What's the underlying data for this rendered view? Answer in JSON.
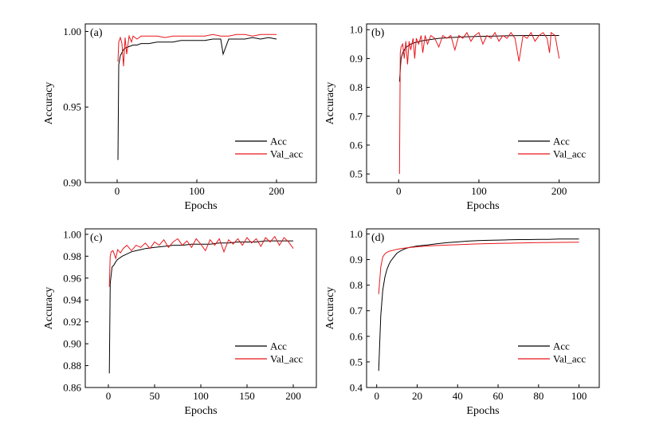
{
  "chart_data": [
    {
      "type": "line",
      "panel_label": "(a)",
      "xlabel": "Epochs",
      "ylabel": "Accuracy",
      "xlim": [
        -40,
        250
      ],
      "ylim": [
        0.9,
        1.005
      ],
      "xticks": [
        0,
        100,
        200
      ],
      "xtick_labels": [
        "0",
        "100",
        "200"
      ],
      "yticks": [
        0.9,
        0.95,
        1.0
      ],
      "ytick_labels": [
        "0.90",
        "0.95",
        "1.00"
      ],
      "legend_position": "bottom-right",
      "series": [
        {
          "name": "Acc",
          "color": "#000000",
          "x": [
            1,
            2,
            4,
            6,
            8,
            10,
            15,
            20,
            25,
            30,
            40,
            50,
            60,
            70,
            80,
            90,
            100,
            110,
            120,
            130,
            133,
            140,
            150,
            160,
            170,
            180,
            190,
            200
          ],
          "y": [
            0.915,
            0.978,
            0.984,
            0.986,
            0.988,
            0.989,
            0.99,
            0.991,
            0.991,
            0.992,
            0.992,
            0.993,
            0.993,
            0.993,
            0.994,
            0.994,
            0.994,
            0.994,
            0.995,
            0.995,
            0.985,
            0.995,
            0.995,
            0.995,
            0.996,
            0.995,
            0.996,
            0.995
          ]
        },
        {
          "name": "Val_acc",
          "color": "#e8161b",
          "x": [
            1,
            2,
            4,
            6,
            8,
            10,
            12,
            15,
            18,
            20,
            25,
            30,
            40,
            50,
            60,
            70,
            80,
            90,
            100,
            110,
            120,
            130,
            140,
            150,
            160,
            170,
            180,
            190,
            200
          ],
          "y": [
            0.98,
            0.993,
            0.996,
            0.992,
            0.977,
            0.996,
            0.985,
            0.997,
            0.993,
            0.997,
            0.995,
            0.997,
            0.997,
            0.997,
            0.996,
            0.997,
            0.997,
            0.997,
            0.997,
            0.997,
            0.998,
            0.997,
            0.997,
            0.998,
            0.998,
            0.997,
            0.998,
            0.998,
            0.998
          ]
        }
      ]
    },
    {
      "type": "line",
      "panel_label": "(b)",
      "xlabel": "Epochs",
      "ylabel": "Accuracy",
      "xlim": [
        -40,
        250
      ],
      "ylim": [
        0.47,
        1.02
      ],
      "xticks": [
        0,
        100,
        200
      ],
      "xtick_labels": [
        "0",
        "100",
        "200"
      ],
      "yticks": [
        0.5,
        0.6,
        0.7,
        0.8,
        0.9,
        1.0
      ],
      "ytick_labels": [
        "0.5",
        "0.6",
        "0.7",
        "0.8",
        "0.9",
        "1.0"
      ],
      "legend_position": "bottom-right",
      "series": [
        {
          "name": "Acc",
          "color": "#000000",
          "x": [
            1,
            3,
            5,
            8,
            10,
            15,
            20,
            30,
            40,
            50,
            60,
            80,
            100,
            120,
            140,
            160,
            180,
            200
          ],
          "y": [
            0.82,
            0.9,
            0.92,
            0.935,
            0.94,
            0.95,
            0.955,
            0.962,
            0.966,
            0.97,
            0.972,
            0.975,
            0.977,
            0.978,
            0.979,
            0.98,
            0.98,
            0.98
          ]
        },
        {
          "name": "Val_acc",
          "color": "#e8161b",
          "x": [
            1,
            2,
            3,
            5,
            7,
            9,
            11,
            13,
            15,
            18,
            20,
            22,
            25,
            28,
            30,
            33,
            36,
            40,
            45,
            50,
            55,
            60,
            65,
            70,
            75,
            80,
            85,
            90,
            95,
            100,
            105,
            110,
            115,
            120,
            125,
            130,
            135,
            140,
            145,
            150,
            155,
            160,
            165,
            170,
            175,
            180,
            185,
            188,
            190,
            195,
            200
          ],
          "y": [
            0.5,
            0.92,
            0.94,
            0.95,
            0.9,
            0.96,
            0.88,
            0.96,
            0.93,
            0.97,
            0.9,
            0.97,
            0.95,
            0.98,
            0.92,
            0.98,
            0.95,
            0.98,
            0.97,
            0.94,
            0.98,
            0.97,
            0.98,
            0.93,
            0.98,
            0.97,
            0.99,
            0.96,
            0.98,
            0.99,
            0.95,
            0.98,
            0.97,
            0.99,
            0.96,
            0.98,
            0.97,
            0.99,
            0.97,
            0.89,
            0.98,
            0.97,
            0.99,
            0.96,
            0.98,
            0.99,
            0.97,
            0.92,
            0.99,
            0.98,
            0.9
          ]
        }
      ]
    },
    {
      "type": "line",
      "panel_label": "(c)",
      "xlabel": "Epochs",
      "ylabel": "Accuracy",
      "xlim": [
        -25,
        225
      ],
      "ylim": [
        0.86,
        1.005
      ],
      "xticks": [
        0,
        50,
        100,
        150,
        200
      ],
      "xtick_labels": [
        "0",
        "50",
        "100",
        "150",
        "200"
      ],
      "yticks": [
        0.86,
        0.88,
        0.9,
        0.92,
        0.94,
        0.96,
        0.98,
        1.0
      ],
      "ytick_labels": [
        "0.86",
        "0.88",
        "0.90",
        "0.92",
        "0.94",
        "0.96",
        "0.98",
        "1.00"
      ],
      "legend_position": "bottom-right",
      "series": [
        {
          "name": "Acc",
          "color": "#000000",
          "x": [
            1,
            2,
            4,
            6,
            8,
            10,
            15,
            20,
            25,
            30,
            35,
            40,
            50,
            60,
            70,
            80,
            90,
            100,
            110,
            120,
            130,
            140,
            150,
            160,
            170,
            180,
            190,
            200
          ],
          "y": [
            0.873,
            0.955,
            0.97,
            0.972,
            0.975,
            0.977,
            0.98,
            0.982,
            0.984,
            0.985,
            0.986,
            0.987,
            0.988,
            0.989,
            0.99,
            0.99,
            0.991,
            0.991,
            0.991,
            0.992,
            0.992,
            0.993,
            0.993,
            0.993,
            0.994,
            0.994,
            0.994,
            0.994
          ]
        },
        {
          "name": "Val_acc",
          "color": "#e8161b",
          "x": [
            1,
            2,
            3,
            5,
            8,
            10,
            13,
            16,
            20,
            25,
            30,
            35,
            40,
            45,
            50,
            55,
            60,
            65,
            70,
            75,
            80,
            85,
            90,
            95,
            100,
            105,
            110,
            115,
            120,
            125,
            130,
            135,
            140,
            145,
            150,
            155,
            160,
            165,
            170,
            175,
            180,
            185,
            190,
            195,
            200
          ],
          "y": [
            0.952,
            0.98,
            0.984,
            0.985,
            0.978,
            0.986,
            0.983,
            0.987,
            0.99,
            0.985,
            0.99,
            0.988,
            0.992,
            0.987,
            0.993,
            0.99,
            0.995,
            0.988,
            0.993,
            0.996,
            0.99,
            0.994,
            0.988,
            0.996,
            0.991,
            0.985,
            0.995,
            0.99,
            0.996,
            0.984,
            0.995,
            0.991,
            0.996,
            0.99,
            0.997,
            0.992,
            0.996,
            0.989,
            0.997,
            0.993,
            0.998,
            0.99,
            0.997,
            0.993,
            0.987
          ]
        }
      ]
    },
    {
      "type": "line",
      "panel_label": "(d)",
      "xlabel": "Epochs",
      "ylabel": "Accuracy",
      "xlim": [
        -5,
        110
      ],
      "ylim": [
        0.4,
        1.02
      ],
      "xticks": [
        0,
        20,
        40,
        60,
        80,
        100
      ],
      "xtick_labels": [
        "0",
        "20",
        "40",
        "60",
        "80",
        "100"
      ],
      "yticks": [
        0.4,
        0.5,
        0.6,
        0.7,
        0.8,
        0.9,
        1.0
      ],
      "ytick_labels": [
        "0.4",
        "0.5",
        "0.6",
        "0.7",
        "0.8",
        "0.9",
        "1.0"
      ],
      "legend_position": "bottom-right",
      "series": [
        {
          "name": "Acc",
          "color": "#000000",
          "x": [
            1,
            2,
            3,
            4,
            5,
            6,
            7,
            8,
            9,
            10,
            12,
            14,
            16,
            18,
            20,
            25,
            30,
            35,
            40,
            45,
            50,
            55,
            60,
            65,
            70,
            75,
            80,
            85,
            90,
            95,
            100
          ],
          "y": [
            0.465,
            0.68,
            0.78,
            0.83,
            0.86,
            0.88,
            0.895,
            0.905,
            0.915,
            0.925,
            0.935,
            0.942,
            0.947,
            0.95,
            0.953,
            0.957,
            0.962,
            0.966,
            0.969,
            0.972,
            0.974,
            0.975,
            0.976,
            0.977,
            0.978,
            0.978,
            0.979,
            0.979,
            0.98,
            0.98,
            0.98
          ]
        },
        {
          "name": "Val_acc",
          "color": "#e8161b",
          "x": [
            1,
            2,
            3,
            4,
            5,
            6,
            8,
            10,
            12,
            15,
            20,
            25,
            30,
            40,
            50,
            60,
            70,
            80,
            90,
            100
          ],
          "y": [
            0.765,
            0.87,
            0.91,
            0.922,
            0.928,
            0.932,
            0.936,
            0.94,
            0.943,
            0.946,
            0.95,
            0.953,
            0.955,
            0.958,
            0.961,
            0.963,
            0.965,
            0.966,
            0.967,
            0.968
          ]
        }
      ]
    }
  ]
}
